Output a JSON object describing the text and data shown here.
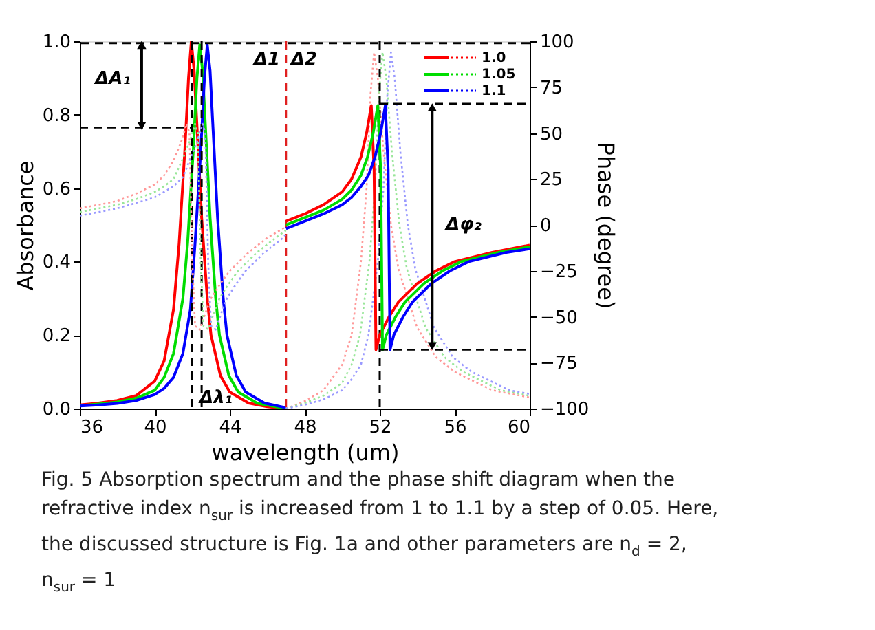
{
  "chart_data": {
    "type": "line",
    "xlabel": "wavelength  (um)",
    "ylabel": "Absorbance",
    "y2label": "Phase (degree)",
    "xlim": [
      36,
      60
    ],
    "xticks": [
      36,
      40,
      44,
      48,
      52,
      56,
      60
    ],
    "ylim": [
      0,
      1
    ],
    "yticks": [
      {
        "value": 0,
        "label": "0.0"
      },
      0.2,
      0.4,
      0.6,
      0.8,
      {
        "value": 1,
        "label": "1.0"
      }
    ],
    "y2lim": [
      -100,
      100
    ],
    "y2ticks": [
      -100,
      -75,
      -50,
      -25,
      0,
      25,
      50,
      75,
      100
    ],
    "grid": false,
    "legend": "top right",
    "series": [
      {
        "name": "1.0",
        "type": "line",
        "line_style": "solid",
        "color": "#ff0000",
        "x": [
          36,
          37,
          38,
          39,
          40,
          40.5,
          41,
          41.3,
          41.6,
          41.8,
          41.95,
          42.1,
          42.3,
          42.5,
          42.8,
          43,
          43.5,
          44,
          45,
          46,
          47
        ],
        "values": [
          0.01,
          0.015,
          0.022,
          0.035,
          0.075,
          0.13,
          0.27,
          0.45,
          0.7,
          0.9,
          1.0,
          0.92,
          0.72,
          0.52,
          0.3,
          0.2,
          0.09,
          0.045,
          0.015,
          0.005,
          0
        ]
      },
      {
        "name": "1.05",
        "type": "line",
        "line_style": "solid",
        "color": "#00dd00",
        "x": [
          36,
          37,
          38,
          39,
          40,
          40.5,
          41,
          41.5,
          41.75,
          42.05,
          42.25,
          42.4,
          42.55,
          42.75,
          42.95,
          43.25,
          43.45,
          43.95,
          44.45,
          45.45,
          46.45,
          47
        ],
        "values": [
          0.008,
          0.012,
          0.018,
          0.028,
          0.05,
          0.085,
          0.15,
          0.3,
          0.45,
          0.7,
          0.9,
          0.99,
          0.92,
          0.72,
          0.52,
          0.3,
          0.2,
          0.09,
          0.045,
          0.015,
          0.005,
          0
        ]
      },
      {
        "name": "1.1",
        "type": "line",
        "line_style": "solid",
        "color": "#0000ff",
        "x": [
          36,
          37,
          38,
          39,
          40,
          40.5,
          41,
          41.5,
          41.9,
          42.15,
          42.45,
          42.65,
          42.8,
          42.95,
          43.15,
          43.35,
          43.65,
          43.85,
          44.35,
          44.85,
          45.85,
          46.85,
          47
        ],
        "values": [
          0.007,
          0.01,
          0.014,
          0.022,
          0.038,
          0.055,
          0.085,
          0.15,
          0.27,
          0.45,
          0.7,
          0.9,
          0.99,
          0.92,
          0.72,
          0.52,
          0.3,
          0.2,
          0.09,
          0.045,
          0.015,
          0.004,
          0
        ]
      },
      {
        "type": "line",
        "line_style": "dotted",
        "color": "#ff9999",
        "x": [
          47,
          48,
          49,
          50,
          50.5,
          51,
          51.3,
          51.5,
          51.7,
          51.9,
          52.2,
          52.6,
          53,
          54,
          55,
          56,
          58,
          60
        ],
        "values": [
          0,
          0.02,
          0.05,
          0.12,
          0.2,
          0.4,
          0.6,
          0.85,
          0.97,
          0.9,
          0.7,
          0.5,
          0.38,
          0.22,
          0.14,
          0.1,
          0.05,
          0.03
        ]
      },
      {
        "type": "line",
        "line_style": "dotted",
        "color": "#99e699",
        "x": [
          47,
          48,
          49,
          50,
          50.5,
          50.95,
          51.45,
          51.75,
          51.95,
          52.15,
          52.35,
          52.65,
          53.05,
          53.45,
          54.45,
          55.45,
          56.45,
          58.45,
          60
        ],
        "values": [
          0,
          0.015,
          0.035,
          0.07,
          0.12,
          0.2,
          0.4,
          0.6,
          0.85,
          0.97,
          0.9,
          0.7,
          0.5,
          0.38,
          0.22,
          0.14,
          0.1,
          0.05,
          0.035
        ]
      },
      {
        "type": "line",
        "line_style": "dotted",
        "color": "#9999ff",
        "x": [
          47,
          48,
          49,
          50,
          50.5,
          51,
          51.4,
          51.9,
          52.2,
          52.4,
          52.6,
          52.8,
          53.1,
          53.5,
          53.9,
          54.9,
          55.9,
          56.9,
          58.9,
          60
        ],
        "values": [
          0,
          0.01,
          0.025,
          0.05,
          0.08,
          0.12,
          0.2,
          0.4,
          0.6,
          0.85,
          0.97,
          0.9,
          0.7,
          0.5,
          0.38,
          0.22,
          0.14,
          0.1,
          0.05,
          0.04
        ]
      },
      {
        "type": "line",
        "axis": "y2",
        "line_style": "dotted",
        "color": "#ff9999",
        "x": [
          36,
          38,
          39,
          40,
          40.5,
          41,
          41.4,
          41.7,
          41.85,
          42.0,
          42.15,
          42.4,
          42.7,
          43,
          43.5,
          44,
          45,
          46,
          47
        ],
        "values": [
          9,
          13,
          17,
          22,
          27,
          35,
          45,
          55,
          50,
          -20,
          -55,
          -57,
          -48,
          -40,
          -32,
          -25,
          -15,
          -7,
          -1
        ]
      },
      {
        "type": "line",
        "axis": "y2",
        "line_style": "dotted",
        "color": "#99e699",
        "x": [
          36,
          38,
          39,
          40,
          40.5,
          41,
          41.45,
          41.85,
          42.15,
          42.3,
          42.45,
          42.6,
          42.85,
          43.15,
          43.45,
          43.95,
          44.45,
          45.45,
          46.45,
          47
        ],
        "values": [
          7,
          11,
          14,
          18,
          21,
          25,
          35,
          45,
          55,
          50,
          -20,
          -55,
          -57,
          -48,
          -40,
          -32,
          -25,
          -15,
          -7,
          -3
        ]
      },
      {
        "type": "line",
        "axis": "y2",
        "line_style": "dotted",
        "color": "#9999ff",
        "x": [
          36,
          38,
          39,
          40,
          40.5,
          41,
          41.5,
          41.85,
          42.25,
          42.55,
          42.7,
          42.85,
          43.0,
          43.25,
          43.55,
          43.85,
          44.35,
          44.85,
          45.85,
          46.85,
          47
        ],
        "values": [
          5,
          9,
          12,
          15,
          18,
          21,
          26,
          35,
          45,
          55,
          50,
          -20,
          -55,
          -57,
          -48,
          -40,
          -32,
          -25,
          -15,
          -7,
          -5
        ]
      },
      {
        "type": "line",
        "axis": "y2",
        "line_style": "solid",
        "color": "#ff0000",
        "x": [
          47,
          48,
          49,
          50,
          50.5,
          51,
          51.3,
          51.55,
          51.7,
          51.8,
          52,
          52.5,
          53,
          54,
          55,
          56,
          58,
          60
        ],
        "values": [
          2,
          6,
          11,
          18,
          25,
          37,
          50,
          65,
          30,
          -68,
          -60,
          -50,
          -42,
          -32,
          -25,
          -20,
          -15,
          -11
        ]
      },
      {
        "type": "line",
        "axis": "y2",
        "line_style": "solid",
        "color": "#00dd00",
        "x": [
          47,
          48,
          49,
          50,
          50.5,
          51,
          51.35,
          51.65,
          51.9,
          52.05,
          52.15,
          52.35,
          52.85,
          53.35,
          54.35,
          55.35,
          56.35,
          58.35,
          60
        ],
        "values": [
          0,
          4,
          8,
          14,
          19,
          27,
          37,
          50,
          65,
          30,
          -68,
          -60,
          -50,
          -42,
          -32,
          -25,
          -20,
          -15,
          -12
        ]
      },
      {
        "type": "line",
        "axis": "y2",
        "line_style": "solid",
        "color": "#0000ff",
        "x": [
          47,
          48,
          49,
          50,
          50.5,
          51,
          51.4,
          51.75,
          52.05,
          52.3,
          52.45,
          52.55,
          52.75,
          53.25,
          53.75,
          54.75,
          55.75,
          56.75,
          58.75,
          60
        ],
        "values": [
          -2,
          2,
          6,
          11,
          15,
          21,
          27,
          37,
          50,
          65,
          30,
          -68,
          -60,
          -50,
          -42,
          -32,
          -25,
          -20,
          -15,
          -13
        ]
      },
      {
        "type": "line",
        "line_style": "dashed",
        "color": "#000000",
        "x": [
          36,
          42.0
        ],
        "values": [
          0.765,
          0.765
        ]
      },
      {
        "type": "line",
        "axis": "y2",
        "line_style": "dashed",
        "color": "#000000",
        "x": [
          52,
          60
        ],
        "values": [
          66,
          66
        ]
      },
      {
        "type": "line",
        "axis": "y2",
        "line_style": "dashed",
        "color": "#000000",
        "x": [
          52,
          60
        ],
        "values": [
          -68,
          -68
        ]
      },
      {
        "type": "line",
        "line_style": "solid",
        "marker": "triangle",
        "color": "#000000",
        "x": [
          39.3,
          39.3
        ],
        "values": [
          0.77,
          0.99
        ]
      },
      {
        "type": "line",
        "axis": "y2",
        "line_style": "solid",
        "marker": "triangle",
        "color": "#000000",
        "x": [
          54.8,
          54.8
        ],
        "values": [
          -66,
          64
        ]
      }
    ],
    "ref_lines": [
      {
        "axis": "x",
        "value": 47,
        "color": "#e02020",
        "line_style": "dashed"
      },
      {
        "axis": "x",
        "value": 42.0,
        "color": "#000000",
        "line_style": "dashed"
      },
      {
        "axis": "x",
        "value": 42.5,
        "color": "#000000",
        "line_style": "dashed"
      },
      {
        "axis": "x",
        "value": 52,
        "color": "#000000",
        "line_style": "dashed"
      },
      {
        "axis": "y",
        "value": 0.995,
        "color": "#000000",
        "line_style": "dashed"
      }
    ],
    "annotations": [
      "ΔA₁",
      "Δλ₁",
      "Δ1",
      "Δ2",
      "Δφ₂",
      "Fig. 5  Absorption spectrum and the phase shift diagram when the",
      "refractive index n$_{sur}$ is increased from 1 to 1.1 by a step of 0.05. Here,",
      "the discussed structure is Fig. 1a and other parameters are n$_{d}$ = 2,",
      "n$_{sur}$ = 1"
    ]
  }
}
